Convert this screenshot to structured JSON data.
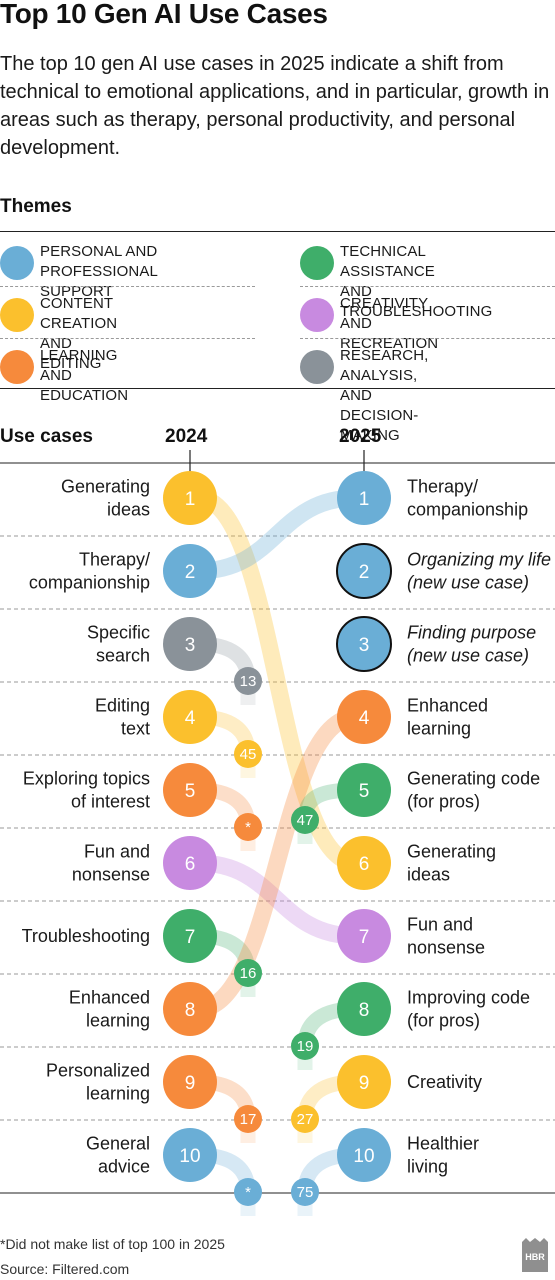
{
  "title": "Top 10 Gen AI Use Cases",
  "subtitle": "The top 10 gen AI use cases in 2025 indicate a shift from technical to emotional applications, and in particular, growth in areas such as therapy, personal productivity, and personal development.",
  "themes_heading": "Themes",
  "themes": [
    {
      "key": "personal",
      "label": "PERSONAL AND\nPROFESSIONAL SUPPORT",
      "color": "#6aaed6"
    },
    {
      "key": "content",
      "label": "CONTENT CREATION\nAND EDITING",
      "color": "#fbc02d"
    },
    {
      "key": "learning",
      "label": "LEARNING AND\nEDUCATION",
      "color": "#f68a3c"
    },
    {
      "key": "technical",
      "label": "TECHNICAL ASSISTANCE\nAND TROUBLESHOOTING",
      "color": "#3fae6a"
    },
    {
      "key": "creativity",
      "label": "CREATIVITY AND\nRECREATION",
      "color": "#c88ae0"
    },
    {
      "key": "research",
      "label": "RESEARCH, ANALYSIS,\nAND DECISION-MAKING",
      "color": "#8a9299"
    }
  ],
  "use_cases_label": "Use cases",
  "year_left": "2024",
  "year_right": "2025",
  "left_list": [
    {
      "rank": 1,
      "label": "Generating\nideas",
      "theme": "content",
      "rank_2025": 6
    },
    {
      "rank": 2,
      "label": "Therapy/\ncompanionship",
      "theme": "personal",
      "rank_2025": 1
    },
    {
      "rank": 3,
      "label": "Specific\nsearch",
      "theme": "research",
      "rank_2025": "13"
    },
    {
      "rank": 4,
      "label": "Editing\ntext",
      "theme": "content",
      "rank_2025": "45"
    },
    {
      "rank": 5,
      "label": "Exploring topics\nof interest",
      "theme": "learning",
      "rank_2025": "*"
    },
    {
      "rank": 6,
      "label": "Fun and\nnonsense",
      "theme": "creativity",
      "rank_2025": 7
    },
    {
      "rank": 7,
      "label": "Troubleshooting",
      "theme": "technical",
      "rank_2025": "16"
    },
    {
      "rank": 8,
      "label": "Enhanced\nlearning",
      "theme": "learning",
      "rank_2025": 4
    },
    {
      "rank": 9,
      "label": "Personalized\nlearning",
      "theme": "learning",
      "rank_2025": "17"
    },
    {
      "rank": 10,
      "label": "General\nadvice",
      "theme": "personal",
      "rank_2025": "*"
    }
  ],
  "right_list": [
    {
      "rank": 1,
      "label": "Therapy/\ncompanionship",
      "theme": "personal",
      "new": false
    },
    {
      "rank": 2,
      "label": "Organizing my life\n(new use case)",
      "theme": "personal",
      "new": true
    },
    {
      "rank": 3,
      "label": "Finding purpose\n(new use case)",
      "theme": "personal",
      "new": true
    },
    {
      "rank": 4,
      "label": "Enhanced\nlearning",
      "theme": "learning",
      "new": false
    },
    {
      "rank": 5,
      "label": "Generating code\n(for pros)",
      "theme": "technical",
      "new": false,
      "rank_2024": "47"
    },
    {
      "rank": 6,
      "label": "Generating\nideas",
      "theme": "content",
      "new": false
    },
    {
      "rank": 7,
      "label": "Fun and\nnonsense",
      "theme": "creativity",
      "new": false
    },
    {
      "rank": 8,
      "label": "Improving code\n(for pros)",
      "theme": "technical",
      "new": false,
      "rank_2024": "19"
    },
    {
      "rank": 9,
      "label": "Creativity",
      "theme": "content",
      "new": false,
      "rank_2024": "27"
    },
    {
      "rank": 10,
      "label": "Healthier\nliving",
      "theme": "personal",
      "new": false,
      "rank_2024": "75"
    }
  ],
  "footnote": "*Did not make list of top 100 in 2025",
  "source": "Source: Filtered.com",
  "logo": "HBR"
}
